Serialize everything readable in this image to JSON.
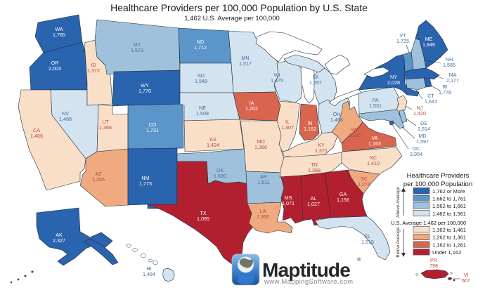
{
  "title": "Healthcare Providers per 100,000 Population by U.S. State",
  "subtitle": "1,462 U.S. Average per 100,000",
  "legend": {
    "title_line1": "Healthcare Providers",
    "title_line2": "per 100,000 Population",
    "above_label": "Above Average",
    "below_label": "Below Average",
    "average_note": "U.S. Average 1,462 per 100,000",
    "classes": [
      {
        "label": "1,762 or More",
        "color": "#2a63ae"
      },
      {
        "label": "1,662 to 1,761",
        "color": "#5b95c9"
      },
      {
        "label": "1,562 to 1,661",
        "color": "#9fc1dc"
      },
      {
        "label": "1,462 to 1,561",
        "color": "#d3e3f0"
      },
      {
        "label": "1,362 to 1,461",
        "color": "#fadfc8"
      },
      {
        "label": "1,262 to 1,361",
        "color": "#f0aa80"
      },
      {
        "label": "1,162 to 1,261",
        "color": "#da654f"
      },
      {
        "label": "Under 1,162",
        "color": "#b22030"
      }
    ],
    "label_colors": {
      "light": "#ffffff",
      "blue": "#436f9e",
      "red": "#b5493f"
    }
  },
  "states": [
    {
      "abbr": "WA",
      "value": "1,765",
      "cls": 1
    },
    {
      "abbr": "OR",
      "value": "2,003",
      "cls": 1
    },
    {
      "abbr": "CA",
      "value": "1,406",
      "cls": 5
    },
    {
      "abbr": "NV",
      "value": "1,488",
      "cls": 4
    },
    {
      "abbr": "ID",
      "value": "1,372",
      "cls": 5
    },
    {
      "abbr": "MT",
      "value": "1,573",
      "cls": 3
    },
    {
      "abbr": "WY",
      "value": "1,770",
      "cls": 1
    },
    {
      "abbr": "UT",
      "value": "1,366",
      "cls": 5
    },
    {
      "abbr": "AZ",
      "value": "1,355",
      "cls": 6
    },
    {
      "abbr": "CO",
      "value": "1,731",
      "cls": 2
    },
    {
      "abbr": "NM",
      "value": "1,773",
      "cls": 1
    },
    {
      "abbr": "ND",
      "value": "1,712",
      "cls": 2
    },
    {
      "abbr": "SD",
      "value": "1,548",
      "cls": 4
    },
    {
      "abbr": "NE",
      "value": "1,508",
      "cls": 4
    },
    {
      "abbr": "KS",
      "value": "1,424",
      "cls": 5
    },
    {
      "abbr": "OK",
      "value": "1,630",
      "cls": 3
    },
    {
      "abbr": "TX",
      "value": "1,095",
      "cls": 8
    },
    {
      "abbr": "MN",
      "value": "1,517",
      "cls": 4
    },
    {
      "abbr": "IA",
      "value": "1,202",
      "cls": 7
    },
    {
      "abbr": "MO",
      "value": "1,366",
      "cls": 5
    },
    {
      "abbr": "AR",
      "value": "1,611",
      "cls": 3
    },
    {
      "abbr": "LA",
      "value": "1,350",
      "cls": 6
    },
    {
      "abbr": "WI",
      "value": "1,475",
      "cls": 4
    },
    {
      "abbr": "IL",
      "value": "1,407",
      "cls": 5
    },
    {
      "abbr": "MI",
      "value": "1,557",
      "cls": 4
    },
    {
      "abbr": "IN",
      "value": "1,162",
      "cls": 7
    },
    {
      "abbr": "OH",
      "value": "1,468",
      "cls": 4
    },
    {
      "abbr": "KY",
      "value": "1,371",
      "cls": 5
    },
    {
      "abbr": "TN",
      "value": "1,368",
      "cls": 5
    },
    {
      "abbr": "MS",
      "value": "1,071",
      "cls": 8
    },
    {
      "abbr": "AL",
      "value": "1,027",
      "cls": 8
    },
    {
      "abbr": "GA",
      "value": "1,156",
      "cls": 8
    },
    {
      "abbr": "FL",
      "value": "1,516",
      "cls": 4
    },
    {
      "abbr": "SC",
      "value": "1,274",
      "cls": 6
    },
    {
      "abbr": "NC",
      "value": "1,410",
      "cls": 5
    },
    {
      "abbr": "VA",
      "value": "1,163",
      "cls": 7
    },
    {
      "abbr": "WV",
      "value": "1,315",
      "cls": 6
    },
    {
      "abbr": "PA",
      "value": "1,531",
      "cls": 4
    },
    {
      "abbr": "NY",
      "value": "2,028",
      "cls": 1
    },
    {
      "abbr": "NJ",
      "value": "1,420",
      "cls": 5
    },
    {
      "abbr": "VT",
      "value": "1,725",
      "cls": 2
    },
    {
      "abbr": "NH",
      "value": "1,585",
      "cls": 3
    },
    {
      "abbr": "ME",
      "value": "1,946",
      "cls": 1
    },
    {
      "abbr": "MA",
      "value": "2,177",
      "cls": 1
    },
    {
      "abbr": "RI",
      "value": "1,778",
      "cls": 1
    },
    {
      "abbr": "CT",
      "value": "1,641",
      "cls": 3
    },
    {
      "abbr": "DE",
      "value": "1,614",
      "cls": 3
    },
    {
      "abbr": "MD",
      "value": "1,597",
      "cls": 3
    },
    {
      "abbr": "DC",
      "value": "3,954",
      "cls": 1
    },
    {
      "abbr": "AK",
      "value": "2,327",
      "cls": 1
    },
    {
      "abbr": "HI",
      "value": "1,464",
      "cls": 4
    },
    {
      "abbr": "PR",
      "value": "798",
      "cls": 8
    },
    {
      "abbr": "VI",
      "value": "507",
      "cls": 8
    }
  ],
  "logo": {
    "brand": "Maptitude",
    "registered": "®",
    "url": "www.MappingSoftware.com"
  }
}
